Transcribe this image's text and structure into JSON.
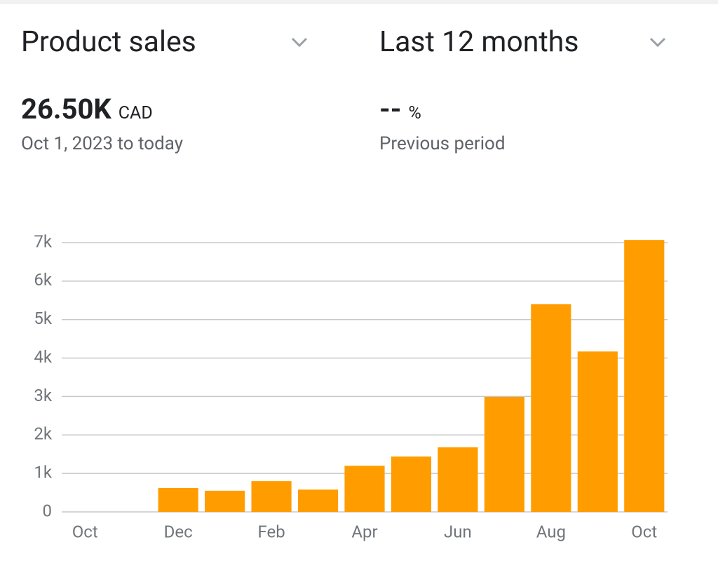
{
  "header": {
    "metric": "Product sales",
    "period": "Last 12 months"
  },
  "summary": {
    "total": "26.50K",
    "currency": "CAD",
    "range": "Oct 1, 2023 to today"
  },
  "comparison": {
    "change": "--",
    "unit": "%",
    "label": "Previous period"
  },
  "chart_data": {
    "type": "bar",
    "categories": [
      "Oct",
      null,
      "Dec",
      null,
      "Feb",
      null,
      "Apr",
      null,
      "Jun",
      null,
      "Aug",
      null,
      "Oct"
    ],
    "values": [
      0,
      0,
      620,
      550,
      800,
      580,
      1200,
      1440,
      1680,
      2990,
      5400,
      4170,
      7070
    ],
    "color": "#ff9d00",
    "ylim": [
      0,
      7000
    ],
    "yticks": [
      0,
      {
        "value": 1000,
        "label": "1k"
      },
      {
        "value": 2000,
        "label": "2k"
      },
      {
        "value": 3000,
        "label": "3k"
      },
      {
        "value": 4000,
        "label": "4k"
      },
      {
        "value": 5000,
        "label": "5k"
      },
      {
        "value": 6000,
        "label": "6k"
      },
      {
        "value": 7000,
        "label": "7k"
      }
    ],
    "grid": true
  }
}
